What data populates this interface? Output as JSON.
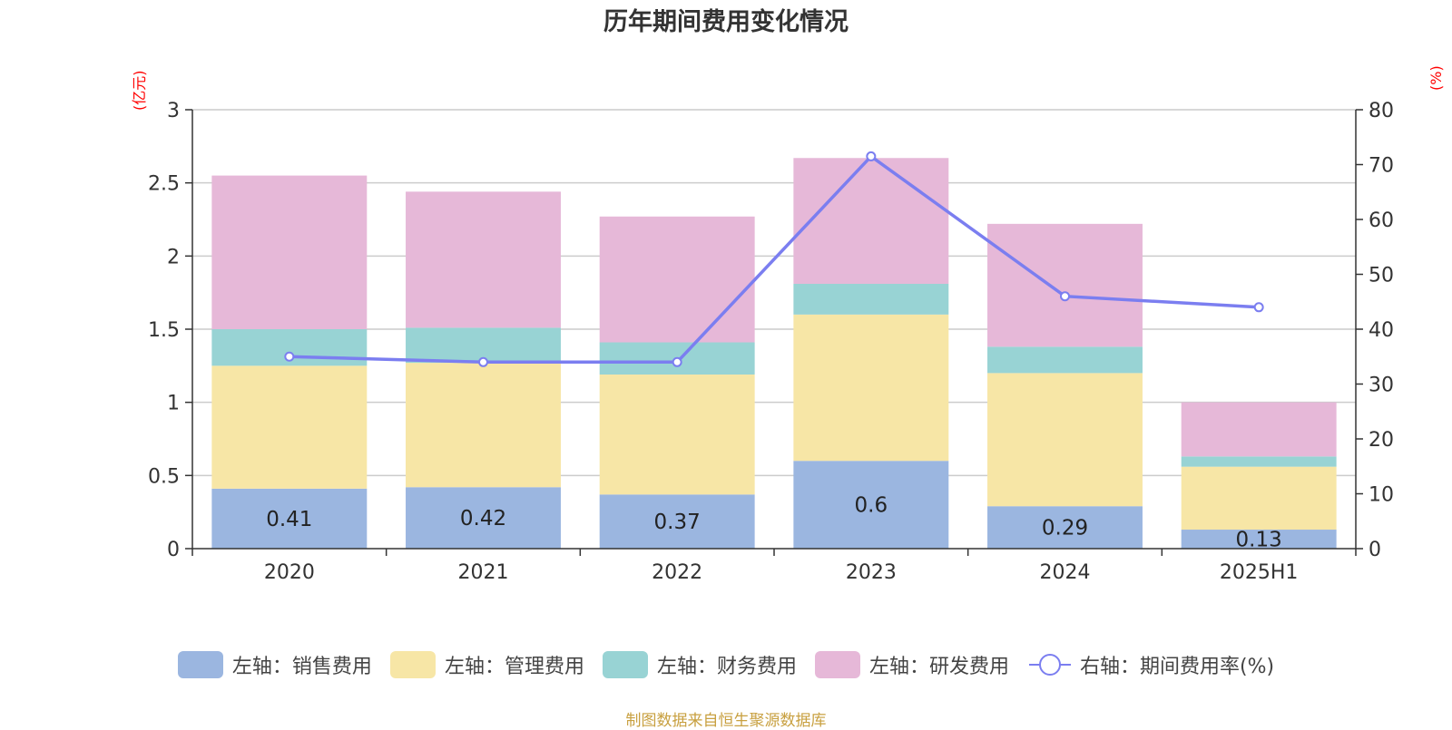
{
  "title": "历年期间费用变化情况",
  "left_unit": "(亿元)",
  "right_unit": "(%)",
  "source": "制图数据来自恒生聚源数据库",
  "colors": {
    "sales": "#9bb6e0",
    "admin": "#f7e6a6",
    "finance": "#98d3d4",
    "rnd": "#e6b8d8",
    "rate": "#7b7ef0"
  },
  "legend": [
    {
      "label": "左轴：销售费用",
      "color": "#9bb6e0",
      "kind": "box"
    },
    {
      "label": "左轴：管理费用",
      "color": "#f7e6a6",
      "kind": "box"
    },
    {
      "label": "左轴：财务费用",
      "color": "#98d3d4",
      "kind": "box"
    },
    {
      "label": "左轴：研发费用",
      "color": "#e6b8d8",
      "kind": "box"
    },
    {
      "label": "右轴：期间费用率(%)",
      "color": "#7b7ef0",
      "kind": "line"
    }
  ],
  "chart_data": {
    "type": "bar",
    "stacked": true,
    "categories": [
      "2020",
      "2021",
      "2022",
      "2023",
      "2024",
      "2025H1"
    ],
    "series": [
      {
        "name": "左轴：销售费用",
        "axis": "left",
        "values": [
          0.41,
          0.42,
          0.37,
          0.6,
          0.29,
          0.13
        ],
        "labels": [
          "0.41",
          "0.42",
          "0.37",
          "0.6",
          "0.29",
          "0.13"
        ]
      },
      {
        "name": "左轴：管理费用",
        "axis": "left",
        "values": [
          0.84,
          0.85,
          0.82,
          1.0,
          0.91,
          0.43
        ]
      },
      {
        "name": "左轴：财务费用",
        "axis": "left",
        "values": [
          0.25,
          0.24,
          0.22,
          0.21,
          0.18,
          0.07
        ]
      },
      {
        "name": "左轴：研发费用",
        "axis": "left",
        "values": [
          1.05,
          0.93,
          0.86,
          0.86,
          0.84,
          0.37
        ]
      },
      {
        "name": "右轴：期间费用率(%)",
        "axis": "right",
        "type": "line",
        "values": [
          35,
          34,
          34,
          71.5,
          46,
          44
        ]
      }
    ],
    "left_axis": {
      "ylim": [
        0,
        3
      ],
      "ticks": [
        "0",
        "0.5",
        "1",
        "1.5",
        "2",
        "2.5",
        "3"
      ]
    },
    "right_axis": {
      "ylim": [
        0,
        80
      ],
      "ticks": [
        "0",
        "10",
        "20",
        "30",
        "40",
        "50",
        "60",
        "70",
        "80"
      ]
    },
    "grid": true,
    "legend_position": "bottom"
  }
}
